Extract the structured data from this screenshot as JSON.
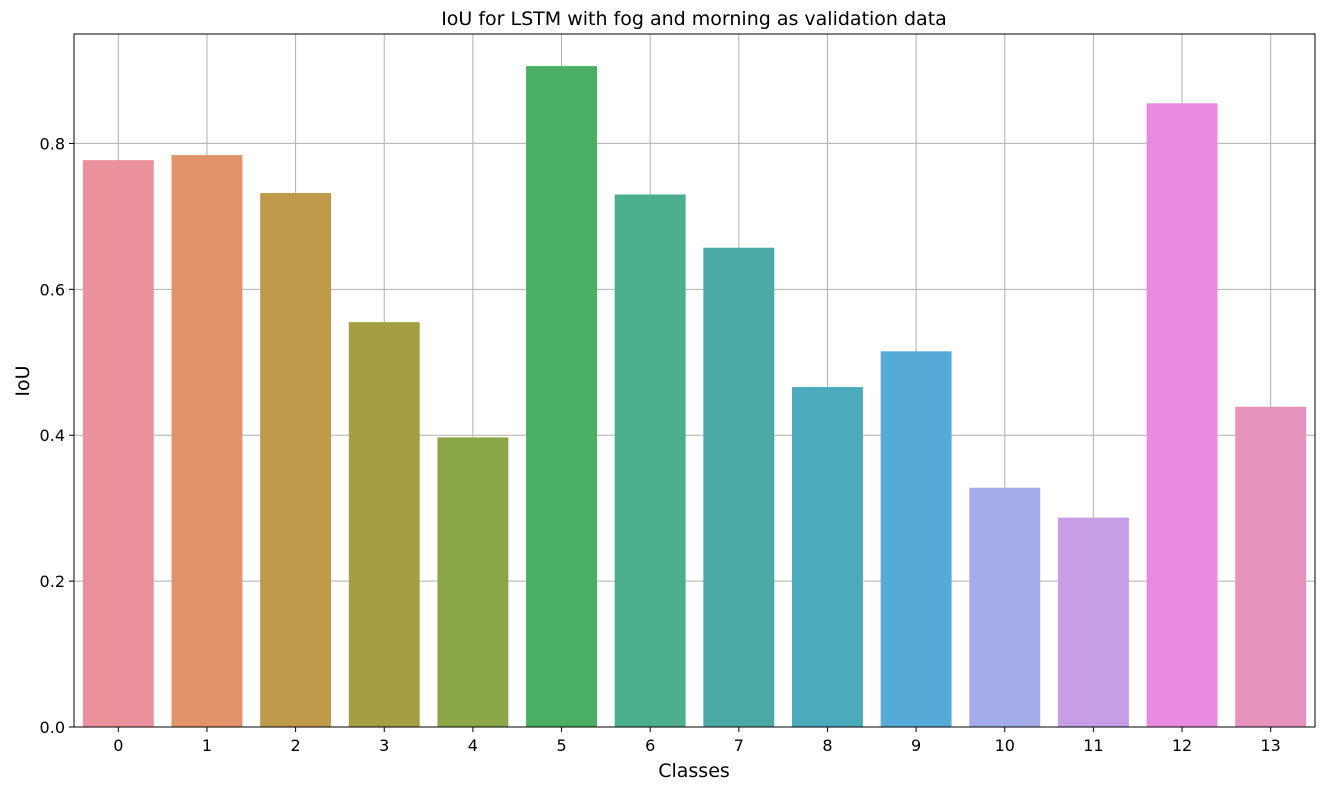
{
  "chart_data": {
    "type": "bar",
    "title": "IoU for LSTM with fog and morning as validation data",
    "xlabel": "Classes",
    "ylabel": "IoU",
    "categories": [
      "0",
      "1",
      "2",
      "3",
      "4",
      "5",
      "6",
      "7",
      "8",
      "9",
      "10",
      "11",
      "12",
      "13"
    ],
    "values": [
      0.777,
      0.784,
      0.732,
      0.555,
      0.397,
      0.906,
      0.73,
      0.657,
      0.466,
      0.515,
      0.328,
      0.287,
      0.855,
      0.439
    ],
    "colors": [
      "#ea919b",
      "#e2936a",
      "#c09a4b",
      "#a59e43",
      "#89a746",
      "#4aaf63",
      "#4baf8d",
      "#4aa8a5",
      "#4caabd",
      "#56aad8",
      "#a2ace8",
      "#c69ee6",
      "#e88ade",
      "#e791bd"
    ],
    "ylim": [
      0,
      0.95
    ],
    "yticks": [
      "0.0",
      "0.2",
      "0.4",
      "0.6",
      "0.8"
    ],
    "grid": true
  }
}
